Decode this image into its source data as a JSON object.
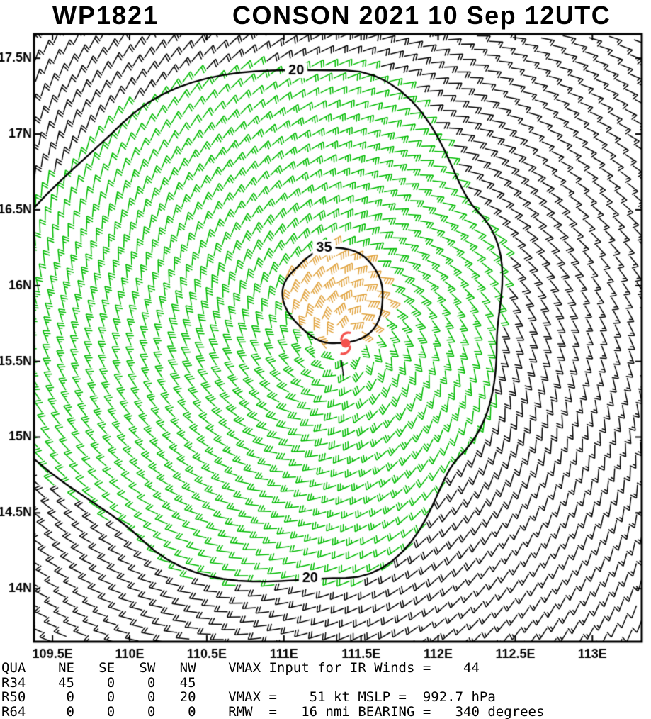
{
  "header": {
    "storm_id": "WP1821",
    "title": "CONSON 2021 10 Sep 12UTC"
  },
  "chart_data": {
    "type": "wind-barb-map",
    "title": "WP1821 CONSON 2021 10 Sep 12UTC",
    "xlabel": "",
    "ylabel": "",
    "lon_range": [
      109.38,
      113.32
    ],
    "lat_range": [
      13.65,
      17.66
    ],
    "x_ticks": [
      {
        "value": 109.5,
        "label": "109.5E"
      },
      {
        "value": 110.0,
        "label": "110E"
      },
      {
        "value": 110.5,
        "label": "110.5E"
      },
      {
        "value": 111.0,
        "label": "111E"
      },
      {
        "value": 111.5,
        "label": "111.5E"
      },
      {
        "value": 112.0,
        "label": "112E"
      },
      {
        "value": 112.5,
        "label": "112.5E"
      },
      {
        "value": 113.0,
        "label": "113E"
      }
    ],
    "y_ticks": [
      {
        "value": 14.0,
        "label": "14N"
      },
      {
        "value": 14.5,
        "label": "14.5N"
      },
      {
        "value": 15.0,
        "label": "15N"
      },
      {
        "value": 15.5,
        "label": "15.5N"
      },
      {
        "value": 16.0,
        "label": "16N"
      },
      {
        "value": 16.5,
        "label": "16.5N"
      },
      {
        "value": 17.0,
        "label": "17N"
      },
      {
        "value": 17.5,
        "label": "17.5N"
      }
    ],
    "storm": {
      "name": "CONSON",
      "id": "WP1821",
      "valid": "2021 10 Sep 12UTC",
      "center_lon": 111.4,
      "center_lat": 15.62,
      "vmax_kt": 51,
      "mslp_hpa": 992.7,
      "rmw_nmi": 16,
      "bearing_deg": 340,
      "vmax_ir_input_kt": 44
    },
    "wind_radii_nmi": {
      "quadrants": [
        "NE",
        "SE",
        "SW",
        "NW"
      ],
      "R34": [
        45,
        0,
        0,
        45
      ],
      "R50": [
        0,
        0,
        0,
        20
      ],
      "R64": [
        0,
        0,
        0,
        0
      ]
    },
    "contours": [
      {
        "level": 20,
        "center": [
          111.4,
          15.62
        ],
        "radii_deg": {
          "N": 1.8,
          "NE": 1.22,
          "E": 0.98,
          "SE": 1.05,
          "S": 1.55,
          "SW": 1.85,
          "W": 2.4,
          "NW": 2.05
        },
        "labels": [
          {
            "lon": 111.08,
            "lat": 17.42
          },
          {
            "lon": 111.17,
            "lat": 14.07
          }
        ]
      },
      {
        "level": 35,
        "center": [
          111.31,
          15.95
        ],
        "radii_deg": {
          "N": 0.3,
          "NE": 0.32,
          "E": 0.33,
          "SE": 0.36,
          "S": 0.33,
          "SW": 0.3,
          "W": 0.32,
          "NW": 0.28
        },
        "labels": [
          {
            "lon": 111.26,
            "lat": 16.25
          }
        ]
      }
    ],
    "color_thresholds_kt": {
      "green_min": 20,
      "orange_min": 35
    },
    "barb_colors": {
      "calm_black": "#000000",
      "moderate_green": "#00bb00",
      "strong_orange": "#e0a23c"
    },
    "center_symbol_color": "#f4514c",
    "barb_grid": {
      "ring_spacing_deg": 0.09,
      "spiral_twist_deg_per_ring": 14,
      "inner_gap_deg": 0.13,
      "outer_limit_deg": 3.05
    }
  },
  "stats": {
    "lines": [
      "QUA    NE   SE   SW   NW    VMAX Input for IR Winds =    44",
      "R34    45    0    0   45",
      "R50     0    0    0   20    VMAX =    51 kt MSLP =  992.7 hPa",
      "R64     0    0    0    0    RMW  =   16 nmi BEARING =   340 degrees"
    ]
  }
}
